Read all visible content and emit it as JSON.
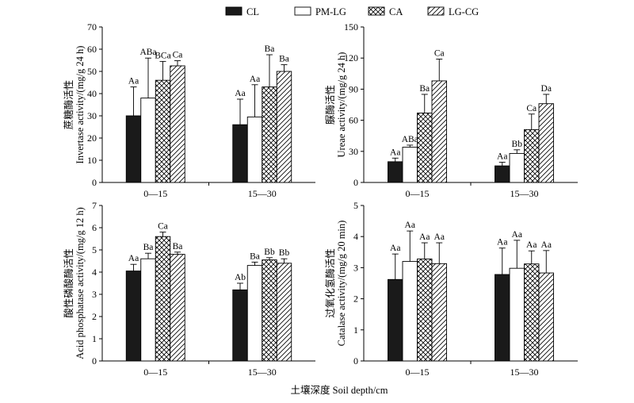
{
  "figure": {
    "xlabel": "土壤深度  Soil depth/cm"
  },
  "legend": [
    {
      "name": "CL",
      "pattern": "solid"
    },
    {
      "name": "PM-LG",
      "pattern": "empty"
    },
    {
      "name": "CA",
      "pattern": "crosshatch"
    },
    {
      "name": "LG-CG",
      "pattern": "diagonal"
    }
  ],
  "colors": {
    "solid": "#1a1a1a",
    "outline": "#000000",
    "background": "#ffffff"
  },
  "chart_data": [
    {
      "type": "bar",
      "ylabel_cn": "蔗糖酶活性",
      "ylabel_en": "Invertase activity/(mg/g 24 h)",
      "categories": [
        "0—15",
        "15—30"
      ],
      "ylim": [
        0,
        70
      ],
      "yticks": [
        0,
        10,
        20,
        30,
        40,
        50,
        60,
        70
      ],
      "series": [
        {
          "name": "CL",
          "values": [
            30,
            26
          ],
          "errors": [
            13,
            11.5
          ],
          "labels": [
            "Aa",
            "Aa"
          ]
        },
        {
          "name": "PM-LG",
          "values": [
            38,
            29.5
          ],
          "errors": [
            18,
            14.5
          ],
          "labels": [
            "ABa",
            "Aa"
          ]
        },
        {
          "name": "CA",
          "values": [
            46,
            43
          ],
          "errors": [
            8.5,
            14.5
          ],
          "labels": [
            "BCa",
            "Ba"
          ]
        },
        {
          "name": "LG-CG",
          "values": [
            52.5,
            50
          ],
          "errors": [
            2.3,
            3
          ],
          "labels": [
            "Ca",
            "Ba"
          ]
        }
      ],
      "grid": false
    },
    {
      "type": "bar",
      "ylabel_cn": "脲酶活性",
      "ylabel_en": "Ureae activity/(mg/g 24 h)",
      "categories": [
        "0—15",
        "15—30"
      ],
      "ylim": [
        0,
        150
      ],
      "yticks": [
        0,
        30,
        60,
        90,
        120,
        150
      ],
      "series": [
        {
          "name": "CL",
          "values": [
            20,
            16
          ],
          "errors": [
            3.5,
            3.5
          ],
          "labels": [
            "Aa",
            "Aa"
          ]
        },
        {
          "name": "PM-LG",
          "values": [
            34,
            28
          ],
          "errors": [
            2,
            3.5
          ],
          "labels": [
            "ABa",
            "Bb"
          ]
        },
        {
          "name": "CA",
          "values": [
            67,
            51
          ],
          "errors": [
            18,
            15
          ],
          "labels": [
            "Ba",
            "Ca"
          ]
        },
        {
          "name": "LG-CG",
          "values": [
            98,
            76
          ],
          "errors": [
            21,
            9
          ],
          "labels": [
            "Ca",
            "Da"
          ]
        }
      ],
      "grid": false
    },
    {
      "type": "bar",
      "ylabel_cn": "酸性磷酸酶活性",
      "ylabel_en": "Acid phosphatase activity/(mg/g 12 h)",
      "categories": [
        "0—15",
        "15—30"
      ],
      "ylim": [
        0,
        7
      ],
      "yticks": [
        0,
        1,
        2,
        3,
        4,
        5,
        6,
        7
      ],
      "series": [
        {
          "name": "CL",
          "values": [
            4.05,
            3.2
          ],
          "errors": [
            0.3,
            0.3
          ],
          "labels": [
            "Aa",
            "Ab"
          ]
        },
        {
          "name": "PM-LG",
          "values": [
            4.6,
            4.3
          ],
          "errors": [
            0.25,
            0.15
          ],
          "labels": [
            "Ba",
            "Ba"
          ]
        },
        {
          "name": "CA",
          "values": [
            5.6,
            4.55
          ],
          "errors": [
            0.2,
            0.1
          ],
          "labels": [
            "Ca",
            "Bb"
          ]
        },
        {
          "name": "LG-CG",
          "values": [
            4.8,
            4.4
          ],
          "errors": [
            0.1,
            0.2
          ],
          "labels": [
            "Ba",
            "Bb"
          ]
        }
      ],
      "grid": false
    },
    {
      "type": "bar",
      "ylabel_cn": "过氧化氢酶活性",
      "ylabel_en": "Catalase activity/(mg/g 20 min)",
      "categories": [
        "0—15",
        "15—30"
      ],
      "ylim": [
        0,
        5
      ],
      "yticks": [
        0,
        1,
        2,
        3,
        4,
        5
      ],
      "series": [
        {
          "name": "CL",
          "values": [
            2.62,
            2.78
          ],
          "errors": [
            0.82,
            0.85
          ],
          "labels": [
            "Aa",
            "Aa"
          ]
        },
        {
          "name": "PM-LG",
          "values": [
            3.2,
            2.98
          ],
          "errors": [
            0.98,
            0.9
          ],
          "labels": [
            "Aa",
            "Aa"
          ]
        },
        {
          "name": "CA",
          "values": [
            3.28,
            3.12
          ],
          "errors": [
            0.52,
            0.42
          ],
          "labels": [
            "Aa",
            "Aa"
          ]
        },
        {
          "name": "LG-CG",
          "values": [
            3.13,
            2.83
          ],
          "errors": [
            0.67,
            0.72
          ],
          "labels": [
            "Aa",
            "Aa"
          ]
        }
      ],
      "grid": false
    }
  ]
}
